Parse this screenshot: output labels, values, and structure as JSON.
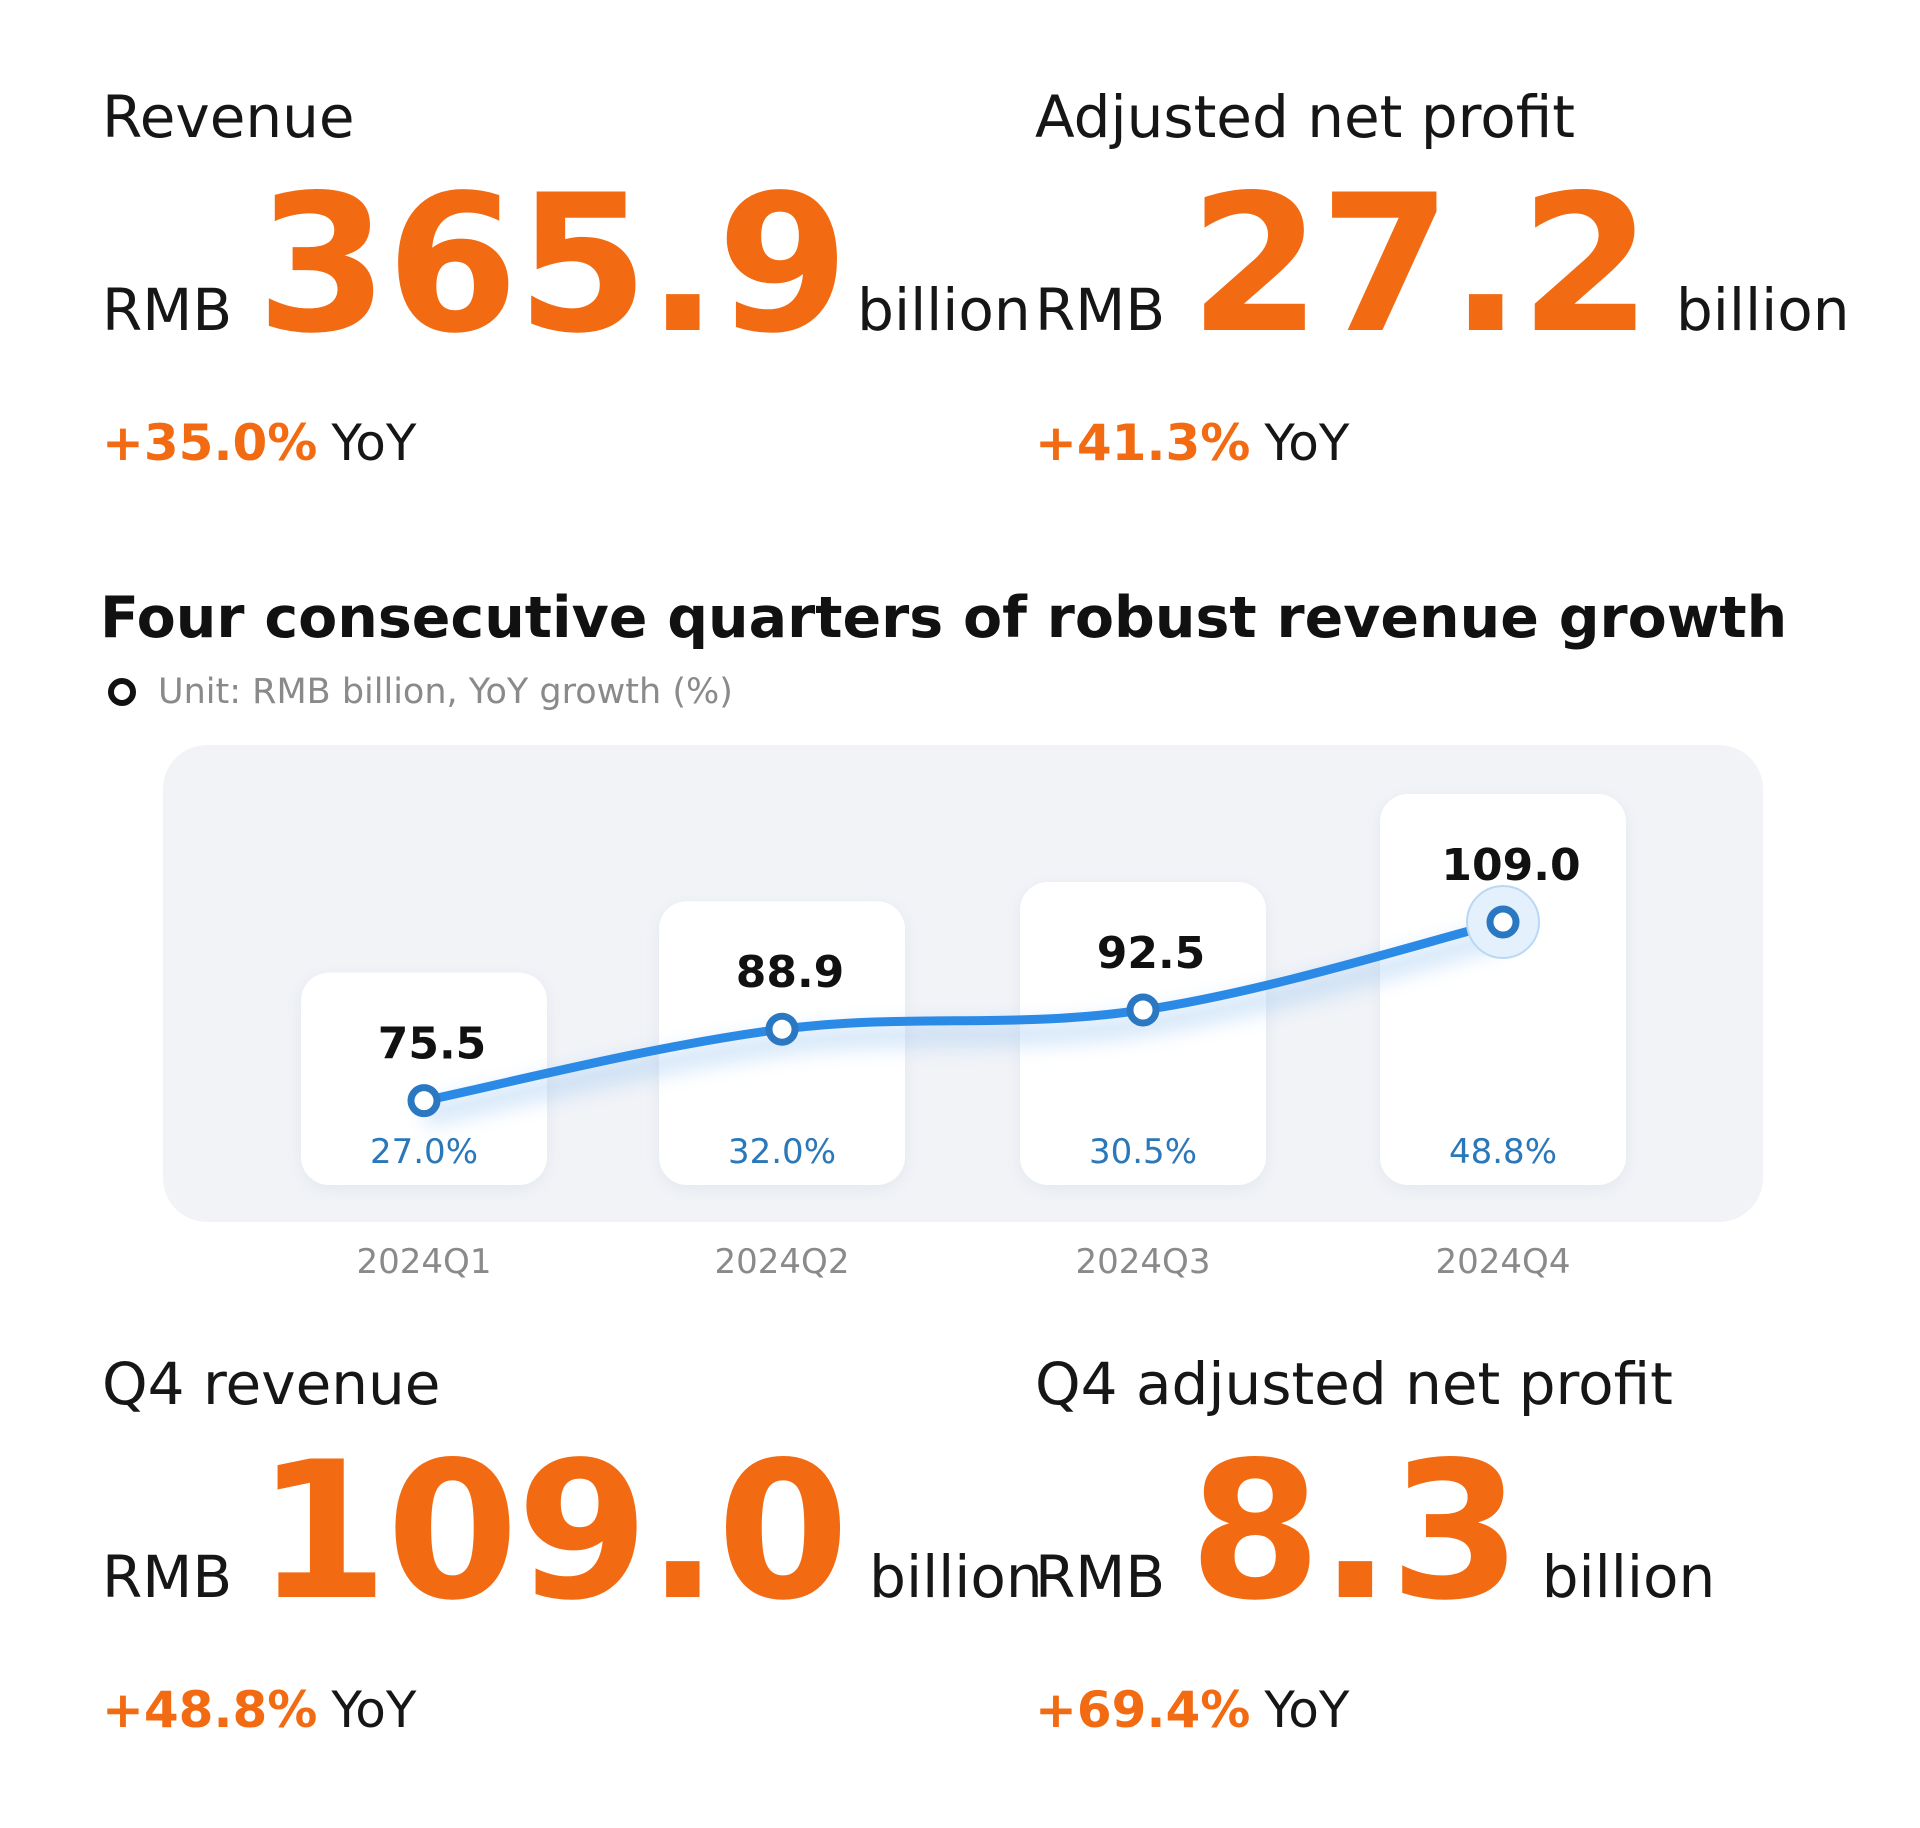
{
  "kpis": {
    "revenue": {
      "label": "Revenue",
      "currency": "RMB",
      "value": "365.9",
      "unit": "billion",
      "yoy": "+35.0%",
      "yoy_suffix": "YoY"
    },
    "adjusted_net_profit": {
      "label": "Adjusted net profit",
      "currency": "RMB",
      "value": "27.2",
      "unit": "billion",
      "yoy": "+41.3%",
      "yoy_suffix": "YoY"
    },
    "q4_revenue": {
      "label": "Q4 revenue",
      "currency": "RMB",
      "value": "109.0",
      "unit": "billion",
      "yoy": "+48.8%",
      "yoy_suffix": "YoY"
    },
    "q4_adjusted_net_profit": {
      "label": "Q4 adjusted net profit",
      "currency": "RMB",
      "value": "8.3",
      "unit": "billion",
      "yoy": "+69.4%",
      "yoy_suffix": "YoY"
    }
  },
  "chart_data": {
    "type": "line",
    "title": "Four consecutive quarters of robust revenue growth",
    "subtitle": "Unit: RMB billion, YoY growth (%)",
    "categories": [
      "2024Q1",
      "2024Q2",
      "2024Q3",
      "2024Q4"
    ],
    "values": [
      75.5,
      88.9,
      92.5,
      109.0
    ],
    "value_labels": [
      "75.5",
      "88.9",
      "92.5",
      "109.0"
    ],
    "growth": [
      27.0,
      32.0,
      30.5,
      48.8
    ],
    "growth_labels": [
      "27.0%",
      "32.0%",
      "30.5%",
      "48.8%"
    ],
    "ylim": [
      70,
      112
    ],
    "grid": false,
    "colors": {
      "line": "#2b8ae6",
      "growth_label": "#2a77b9",
      "panel": "#f1f3f7",
      "card": "#ffffff"
    }
  }
}
